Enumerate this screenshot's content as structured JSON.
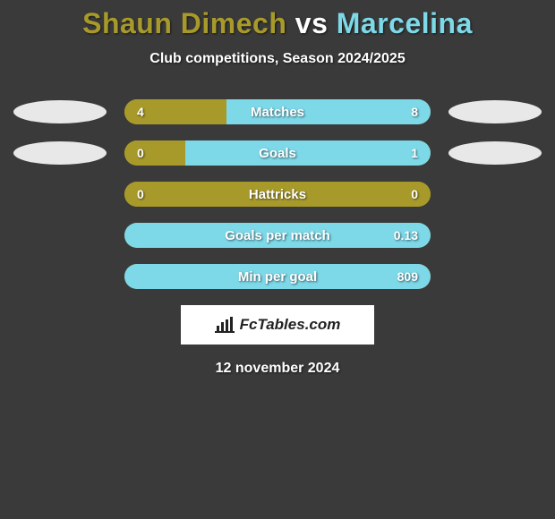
{
  "title": {
    "player1": "Shaun Dimech",
    "vs": "vs",
    "player2": "Marcelina",
    "player1_color": "#a89a2a",
    "vs_color": "#ffffff",
    "player2_color": "#7dd8e8"
  },
  "subtitle": "Club competitions, Season 2024/2025",
  "colors": {
    "left": "#a89a2a",
    "right": "#7dd8e8",
    "ellipse_left": "#e8e8e8",
    "ellipse_right": "#e8e8e8",
    "background": "#3a3a3a"
  },
  "rows": [
    {
      "label": "Matches",
      "left_val": "4",
      "right_val": "8",
      "left_pct": 33.3,
      "right_pct": 66.7,
      "show_ellipses": true
    },
    {
      "label": "Goals",
      "left_val": "0",
      "right_val": "1",
      "left_pct": 20,
      "right_pct": 80,
      "show_ellipses": true
    },
    {
      "label": "Hattricks",
      "left_val": "0",
      "right_val": "0",
      "left_pct": 100,
      "right_pct": 0,
      "show_ellipses": false
    },
    {
      "label": "Goals per match",
      "left_val": "",
      "right_val": "0.13",
      "left_pct": 0,
      "right_pct": 100,
      "show_ellipses": false
    },
    {
      "label": "Min per goal",
      "left_val": "",
      "right_val": "809",
      "left_pct": 0,
      "right_pct": 100,
      "show_ellipses": false
    }
  ],
  "logo": "FcTables.com",
  "date": "12 november 2024"
}
